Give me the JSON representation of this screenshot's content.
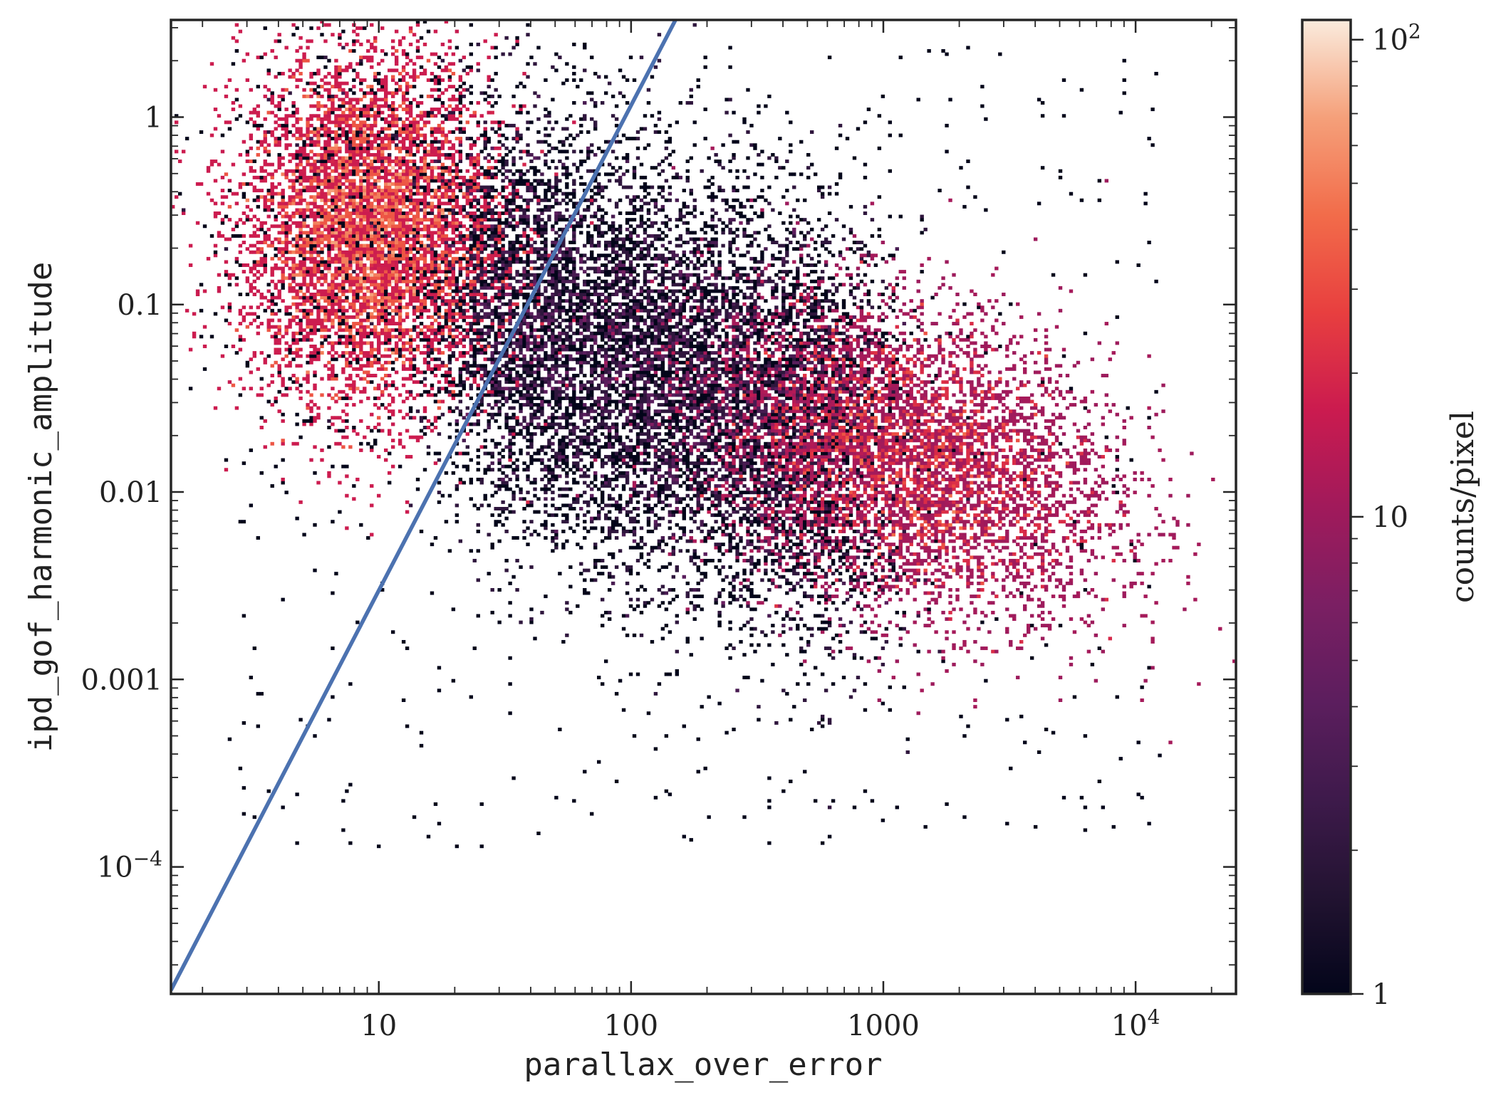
{
  "chart_data": {
    "type": "heatmap",
    "title": "",
    "xlabel": "parallax_over_error",
    "ylabel": "ipd_gof_harmonic_amplitude",
    "xscale": "log",
    "yscale": "log",
    "xlim": [
      1.5,
      25000
    ],
    "ylim": [
      2.1e-05,
      3.3
    ],
    "x_ticks": [
      {
        "value": 10,
        "label": "10"
      },
      {
        "value": 100,
        "label": "100"
      },
      {
        "value": 1000,
        "label": "1000"
      },
      {
        "value": 10000,
        "label": "10",
        "sup": "4"
      }
    ],
    "y_ticks": [
      {
        "value": 1,
        "label": "1"
      },
      {
        "value": 0.1,
        "label": "0.1"
      },
      {
        "value": 0.01,
        "label": "0.01"
      },
      {
        "value": 0.001,
        "label": "0.001"
      },
      {
        "value": 0.0001,
        "label": "10",
        "sup": "−4"
      }
    ],
    "density_clusters": [
      {
        "x_center": 9,
        "y_center": 0.25,
        "peak_counts": 100
      },
      {
        "x_center": 1300,
        "y_center": 0.015,
        "peak_counts": 45
      }
    ],
    "reference_line": {
      "color": "#4c72b0",
      "points": [
        [
          1.5,
          2.2e-05
        ],
        [
          150,
          3.3
        ]
      ]
    },
    "colorbar": {
      "label": "counts/pixel",
      "scale": "log",
      "range": [
        1,
        110
      ],
      "colormap": "rocket",
      "ticks": [
        {
          "value": 1,
          "label": "1"
        },
        {
          "value": 10,
          "label": "10"
        },
        {
          "value": 100,
          "label": "10",
          "sup": "2"
        }
      ]
    },
    "grid": false,
    "legend": "none"
  }
}
